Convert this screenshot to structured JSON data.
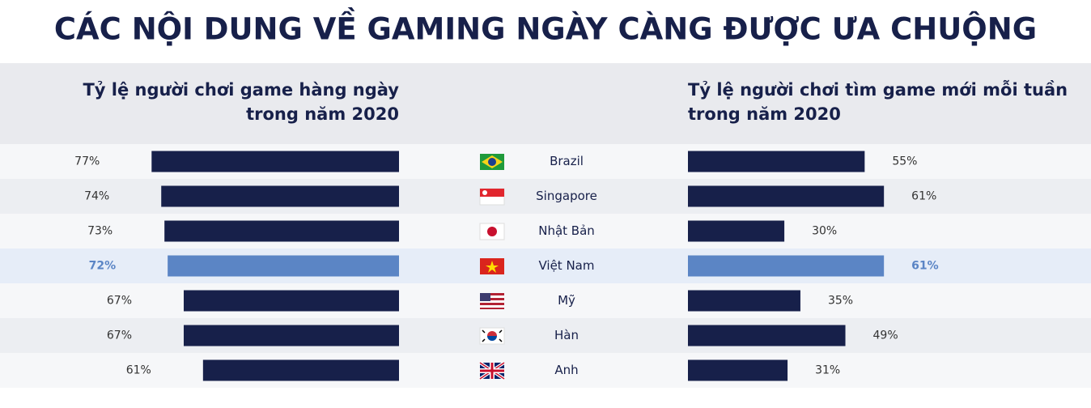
{
  "chart_data": {
    "type": "bar",
    "title": "CÁC NỘI DUNG VỀ GAMING NGÀY CÀNG ĐƯỢC ƯA CHUỘNG",
    "categories": [
      "Brazil",
      "Singapore",
      "Nhật Bản",
      "Việt Nam",
      "Mỹ",
      "Hàn",
      "Anh"
    ],
    "highlight": 3,
    "series": [
      {
        "name": "Tỷ lệ người chơi game hàng ngày\ntrong năm 2020",
        "color": "#17204a",
        "highlight_color": "#5b85c5",
        "values": [
          77,
          74,
          73,
          72,
          67,
          67,
          61
        ],
        "value_labels": [
          "77%",
          "74%",
          "73%",
          "72%",
          "67%",
          "67%",
          "61%"
        ]
      },
      {
        "name": "Tỷ lệ người chơi tìm game mới mỗi tuần\ntrong năm 2020",
        "color": "#17204a",
        "highlight_color": "#5b85c5",
        "values": [
          55,
          61,
          30,
          61,
          35,
          49,
          31
        ],
        "value_labels": [
          "55%",
          "61%",
          "30%",
          "61%",
          "35%",
          "49%",
          "31%"
        ]
      }
    ]
  }
}
